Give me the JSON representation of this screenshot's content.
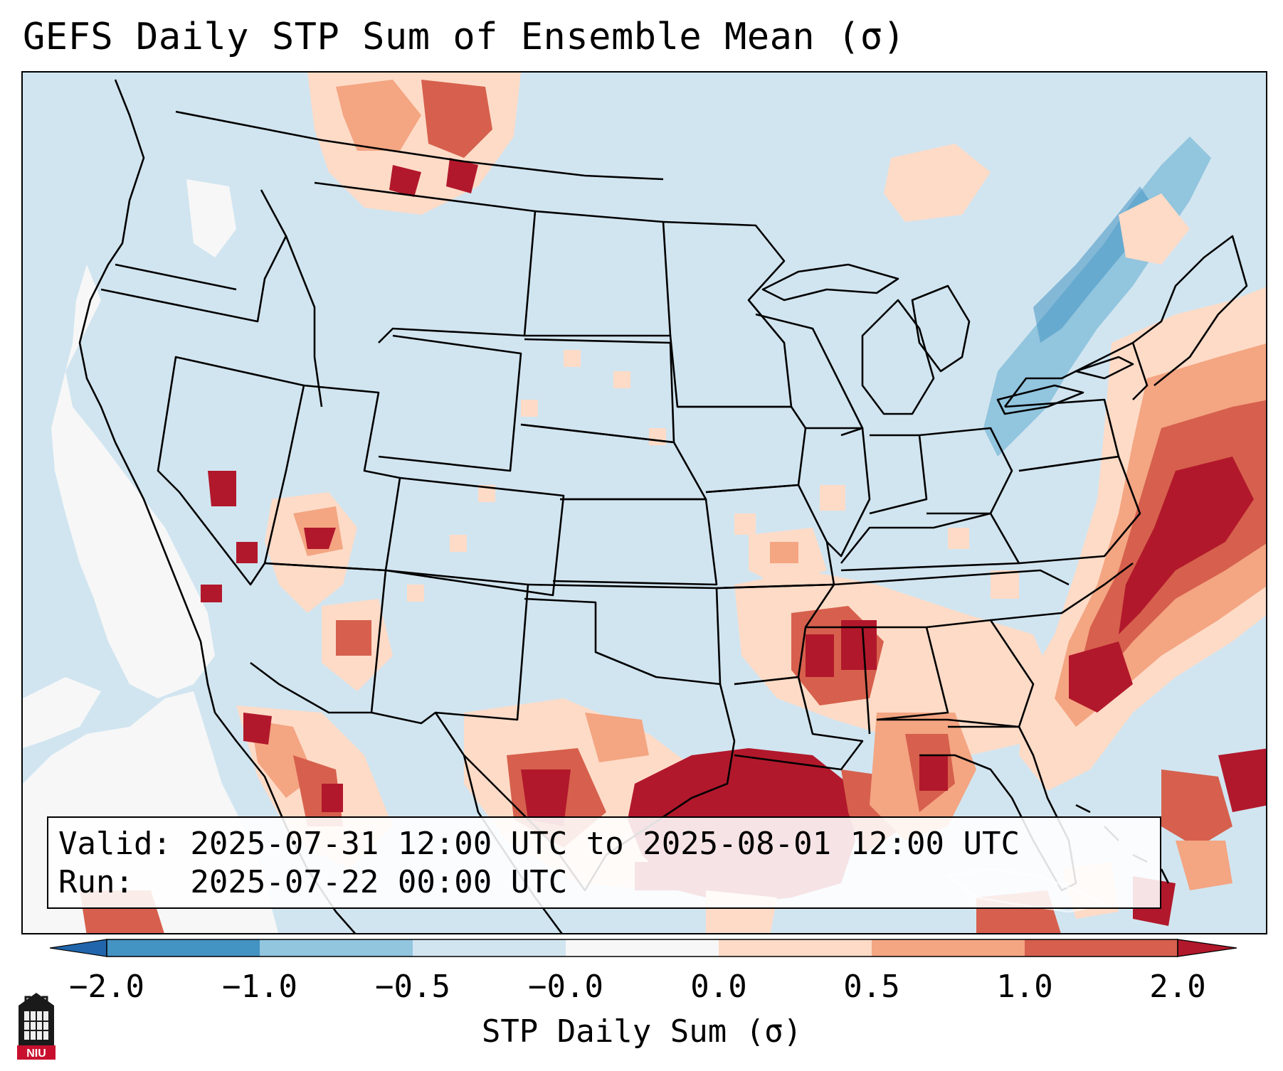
{
  "title": "GEFS Daily STP Sum of Ensemble Mean (σ)",
  "info": {
    "valid_line": "Valid: 2025-07-31 12:00 UTC to 2025-08-01 12:00 UTC",
    "run_line": "Run:   2025-07-22 00:00 UTC"
  },
  "colorbar": {
    "label": "STP Daily Sum (σ)",
    "tick_labels": [
      "−2.0",
      "−1.0",
      "−0.5",
      "−0.0",
      "0.0",
      "0.5",
      "1.0",
      "2.0"
    ],
    "colors": {
      "below_min": "#2166ac",
      "bins": [
        "#4393c3",
        "#92c5de",
        "#d1e5f0",
        "#f7f7f7",
        "#fddbc7",
        "#f4a582",
        "#d6604d"
      ],
      "above_max": "#b2182b"
    }
  },
  "map": {
    "projection": "Lambert Conformal (CONUS)",
    "regions": [
      {
        "name": "Gulf of Mexico",
        "level": "above_max"
      },
      {
        "name": "Western Atlantic",
        "level": "bin_6"
      },
      {
        "name": "Southeast US",
        "level": "bin_5"
      },
      {
        "name": "Great Lakes / St. Lawrence",
        "level": "bin_1"
      },
      {
        "name": "Pacific coast",
        "level": "bin_3"
      },
      {
        "name": "Northern Rockies",
        "level": "bin_4"
      },
      {
        "name": "Desert Southwest",
        "level": "bin_4"
      }
    ]
  },
  "logo": {
    "text": "NIU",
    "icon": "university-building-icon"
  }
}
